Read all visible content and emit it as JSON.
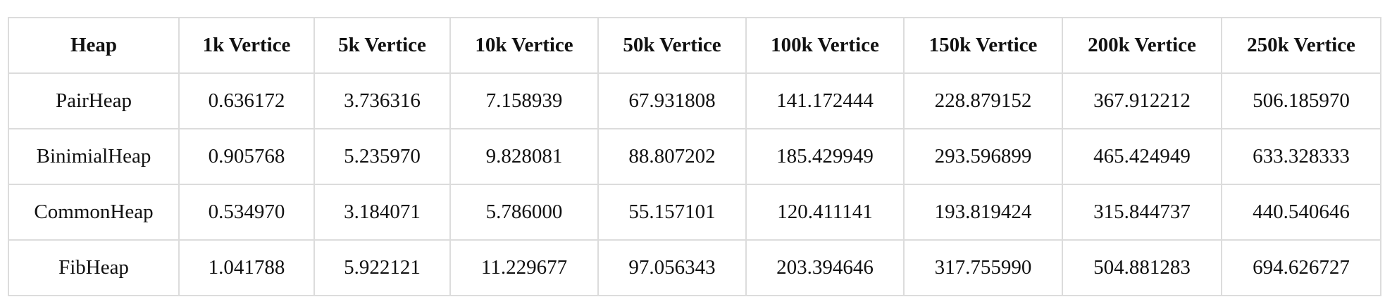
{
  "table": {
    "headers": [
      "Heap",
      "1k Vertice",
      "5k Vertice",
      "10k Vertice",
      "50k Vertice",
      "100k Vertice",
      "150k Vertice",
      "200k Vertice",
      "250k Vertice"
    ],
    "rows": [
      [
        "PairHeap",
        "0.636172",
        "3.736316",
        "7.158939",
        "67.931808",
        "141.172444",
        "228.879152",
        "367.912212",
        "506.185970"
      ],
      [
        "BinimialHeap",
        "0.905768",
        "5.235970",
        "9.828081",
        "88.807202",
        "185.429949",
        "293.596899",
        "465.424949",
        "633.328333"
      ],
      [
        "CommonHeap",
        "0.534970",
        "3.184071",
        "5.786000",
        "55.157101",
        "120.411141",
        "193.819424",
        "315.844737",
        "440.540646"
      ],
      [
        "FibHeap",
        "1.041788",
        "5.922121",
        "11.229677",
        "97.056343",
        "203.394646",
        "317.755990",
        "504.881283",
        "694.626727"
      ]
    ]
  }
}
